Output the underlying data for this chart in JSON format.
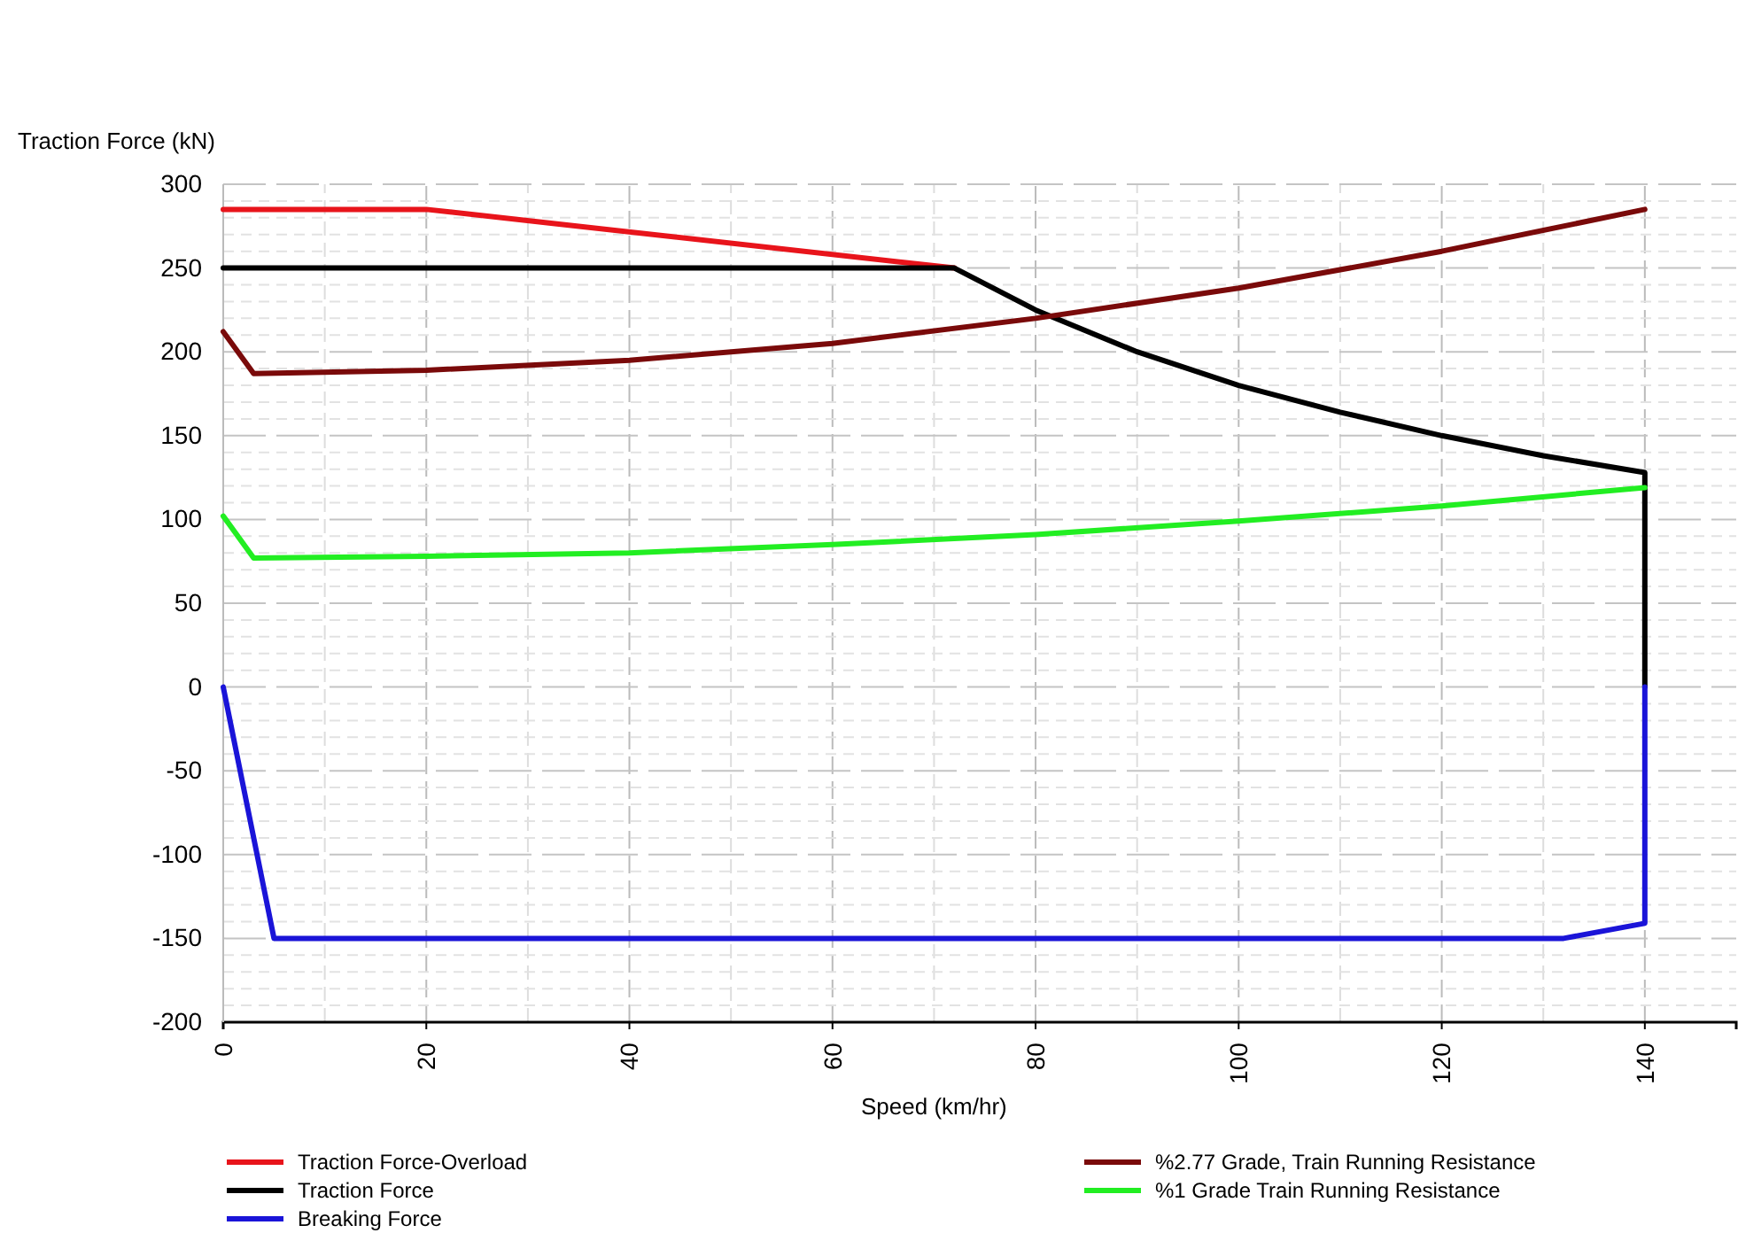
{
  "chart_data": {
    "type": "line",
    "xlabel": "Speed (km/hr)",
    "ylabel": "Traction Force (kN)",
    "xlim": [
      0,
      149
    ],
    "xticks": [
      0,
      20,
      40,
      60,
      80,
      100,
      120,
      140
    ],
    "ylim": [
      -200,
      300
    ],
    "yticks": [
      -200,
      -150,
      -100,
      -50,
      0,
      50,
      100,
      150,
      200,
      250,
      300
    ],
    "grid": true,
    "legend": "bottom",
    "line_style": "solid",
    "marker": "none",
    "series": [
      {
        "name": "Traction Force-Overload",
        "color": "#e8141b",
        "x": [
          0,
          20,
          72
        ],
        "values": [
          285,
          285,
          250
        ]
      },
      {
        "name": "Traction Force",
        "color": "#000000",
        "x": [
          0,
          72,
          80,
          90,
          100,
          110,
          120,
          130,
          140,
          140
        ],
        "values": [
          250,
          250,
          225,
          200,
          180,
          164,
          150,
          138,
          128,
          0
        ]
      },
      {
        "name": "Breaking Force",
        "color": "#1a14d8",
        "x": [
          0,
          5,
          132,
          140,
          140
        ],
        "values": [
          0,
          -150,
          -150,
          -141,
          0
        ]
      },
      {
        "name": "%2.77 Grade, Train Running Resistance",
        "color": "#7a0a0a",
        "x": [
          0,
          3,
          20,
          40,
          60,
          80,
          100,
          120,
          140
        ],
        "values": [
          212,
          187,
          189,
          195,
          205,
          220,
          238,
          260,
          285
        ]
      },
      {
        "name": "%1 Grade Train Running Resistance",
        "color": "#22ee22",
        "x": [
          0,
          3,
          20,
          40,
          60,
          80,
          100,
          120,
          140
        ],
        "values": [
          102,
          77,
          78,
          80,
          85,
          91,
          99,
          108,
          119
        ]
      }
    ]
  }
}
